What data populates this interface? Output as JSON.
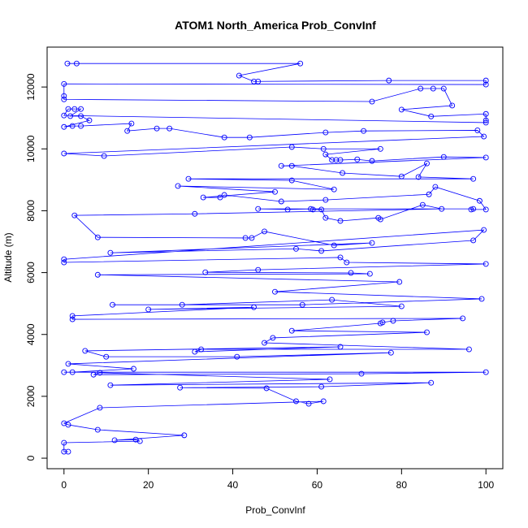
{
  "chart_data": {
    "type": "line",
    "title": "ATOM1 North_America Prob_ConvInf",
    "x_label": "Prob_ConvInf",
    "y_label": "Altitude (m)",
    "color": "#0000ff",
    "markers": "open-circle",
    "xlim": [
      -4,
      104
    ],
    "xticks": [
      0,
      20,
      40,
      60,
      80,
      100
    ],
    "ylim": [
      -340,
      13290
    ],
    "yticks": [
      0,
      2000,
      4000,
      6000,
      8000,
      10000,
      12000
    ],
    "x": [
      0.8,
      3,
      56,
      41.5,
      45,
      46,
      77,
      100,
      100,
      0,
      0,
      0,
      73,
      84.5,
      87.5,
      90,
      92,
      80,
      87,
      100,
      100,
      100,
      0,
      1,
      2.5,
      4,
      1.5,
      4,
      6,
      0,
      2,
      4,
      16,
      15,
      22,
      25,
      38,
      44,
      62,
      71,
      98,
      99.5,
      0,
      9.5,
      54,
      61.5,
      75,
      62,
      63.5,
      64.5,
      65.5,
      69.5,
      73,
      90,
      100,
      51.5,
      54,
      66,
      80,
      86,
      84,
      97,
      29.5,
      54,
      64,
      27,
      50,
      33,
      37,
      38,
      51.5,
      62,
      86.5,
      88,
      98.5,
      100,
      96.5,
      97,
      46,
      53,
      58.5,
      59,
      61,
      62,
      65.5,
      74.5,
      75,
      85,
      89.5,
      31,
      2.5,
      8,
      43,
      44.5,
      47.5,
      64,
      73,
      11,
      55,
      61,
      97,
      99.5,
      0,
      0,
      65.5,
      67,
      100,
      46,
      33.5,
      68,
      72.5,
      8,
      79.5,
      50,
      99,
      56.5,
      11.5,
      28,
      63.5,
      80,
      20,
      45,
      2,
      2,
      94.5,
      78,
      75.5,
      75,
      54,
      86,
      49.5,
      47.5,
      96,
      32.5,
      31,
      65.5,
      5,
      10,
      41,
      77.5,
      1,
      16.5,
      2,
      0,
      100,
      70.5,
      7,
      8.5,
      63,
      11,
      87,
      61,
      27.5,
      48,
      55,
      58,
      61.5,
      8.5,
      0,
      1,
      8,
      28.5,
      12,
      17,
      18,
      0,
      0,
      1
    ],
    "values": [
      12760,
      12760,
      12760,
      12370,
      12180,
      12180,
      12210,
      12210,
      12080,
      12100,
      11710,
      11600,
      11530,
      11950,
      11950,
      11950,
      11400,
      11270,
      11050,
      11130,
      10920,
      10850,
      11080,
      11290,
      11290,
      11290,
      11060,
      11060,
      10920,
      10710,
      10740,
      10740,
      10820,
      10580,
      10660,
      10660,
      10370,
      10370,
      10530,
      10580,
      10600,
      10400,
      9850,
      9770,
      10060,
      10000,
      10000,
      9820,
      9640,
      9640,
      9640,
      9660,
      9610,
      9740,
      9720,
      9450,
      9450,
      9220,
      9110,
      9530,
      9090,
      9030,
      9030,
      8980,
      8690,
      8800,
      8610,
      8430,
      8430,
      8510,
      8300,
      8350,
      8530,
      8770,
      8320,
      8040,
      8040,
      8060,
      8060,
      8040,
      8060,
      8040,
      8040,
      7770,
      7670,
      7770,
      7720,
      8190,
      8060,
      7900,
      7850,
      7140,
      7120,
      7120,
      7330,
      6880,
      6960,
      6640,
      6770,
      6700,
      7040,
      7380,
      6430,
      6330,
      6490,
      6330,
      6280,
      6090,
      6010,
      5990,
      5960,
      5930,
      5700,
      5380,
      5150,
      4960,
      4960,
      4960,
      5120,
      4910,
      4810,
      4880,
      4600,
      4490,
      4520,
      4440,
      4390,
      4360,
      4120,
      4070,
      3890,
      3730,
      3520,
      3520,
      3440,
      3600,
      3470,
      3280,
      3280,
      3410,
      3050,
      2890,
      2780,
      2780,
      2780,
      2730,
      2700,
      2760,
      2550,
      2360,
      2440,
      2310,
      2280,
      2260,
      1840,
      1760,
      1840,
      1630,
      1130,
      1080,
      920,
      740,
      580,
      600,
      550,
      500,
      210,
      210
    ]
  }
}
